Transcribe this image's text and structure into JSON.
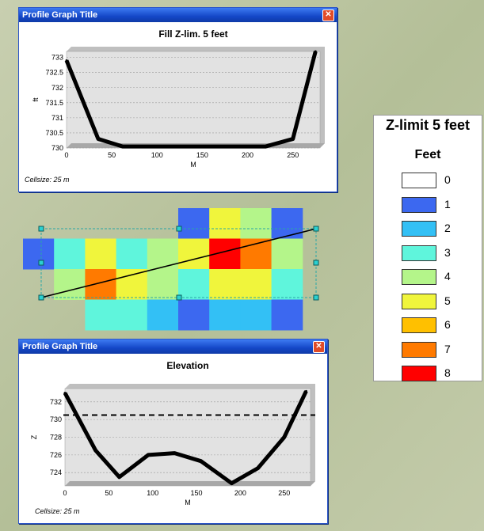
{
  "windows": [
    {
      "title": "Profile Graph Title",
      "close_icon": "close-icon",
      "cellsize": "Cellsize: 25 m",
      "chart_data": {
        "type": "line",
        "title": "Fill Z-lim. 5 feet",
        "xlabel": "M",
        "ylabel": "ft",
        "xlim": [
          0,
          280
        ],
        "ylim": [
          730,
          733.2
        ],
        "xticks": [
          "0",
          "50",
          "100",
          "150",
          "200",
          "250"
        ],
        "yticks": [
          "733",
          "732.5",
          "732",
          "731.5",
          "731",
          "730.5",
          "730"
        ],
        "series": [
          {
            "x": [
              0,
              35,
              62,
              100,
              150,
              200,
              220,
              250,
              275
            ],
            "y": [
              732.9,
              730.3,
              730.05,
              730.05,
              730.05,
              730.05,
              730.05,
              730.3,
              733.2
            ]
          }
        ],
        "grid": true
      }
    },
    {
      "title": "Profile Graph Title",
      "close_icon": "close-icon",
      "cellsize": "Cellsize: 25 m",
      "chart_data": {
        "type": "line",
        "title": "Elevation",
        "xlabel": "M",
        "ylabel": "Z",
        "xlim": [
          0,
          280
        ],
        "ylim": [
          722.5,
          733.5
        ],
        "xticks": [
          "0",
          "50",
          "100",
          "150",
          "200",
          "250"
        ],
        "yticks": [
          "732",
          "730",
          "728",
          "726",
          "724"
        ],
        "reference_line": 730.5,
        "series": [
          {
            "x": [
              0,
              35,
              62,
              95,
              125,
              155,
              190,
              220,
              250,
              275
            ],
            "y": [
              733,
              726.5,
              723.5,
              726,
              726.2,
              725.3,
              722.8,
              724.5,
              728,
              733.2
            ]
          }
        ],
        "grid": true
      }
    }
  ],
  "legend": {
    "title": "Z-limit 5 feet",
    "subtitle": "Feet",
    "items": [
      {
        "label": "0",
        "color": "#ffffff"
      },
      {
        "label": "1",
        "color": "#3c68f0"
      },
      {
        "label": "2",
        "color": "#33c0f5"
      },
      {
        "label": "3",
        "color": "#5ff5dc"
      },
      {
        "label": "4",
        "color": "#b4f58a"
      },
      {
        "label": "5",
        "color": "#f0f53c"
      },
      {
        "label": "6",
        "color": "#ffc000"
      },
      {
        "label": "7",
        "color": "#ff7a00"
      },
      {
        "label": "8",
        "color": "#ff0000"
      }
    ]
  },
  "raster": {
    "rows": [
      [
        null,
        null,
        null,
        null,
        null,
        1,
        5,
        4,
        1
      ],
      [
        1,
        3,
        5,
        3,
        4,
        5,
        8,
        7,
        4
      ],
      [
        null,
        4,
        7,
        5,
        4,
        3,
        5,
        5,
        3
      ],
      [
        null,
        null,
        3,
        3,
        2,
        1,
        2,
        2,
        1
      ]
    ]
  }
}
